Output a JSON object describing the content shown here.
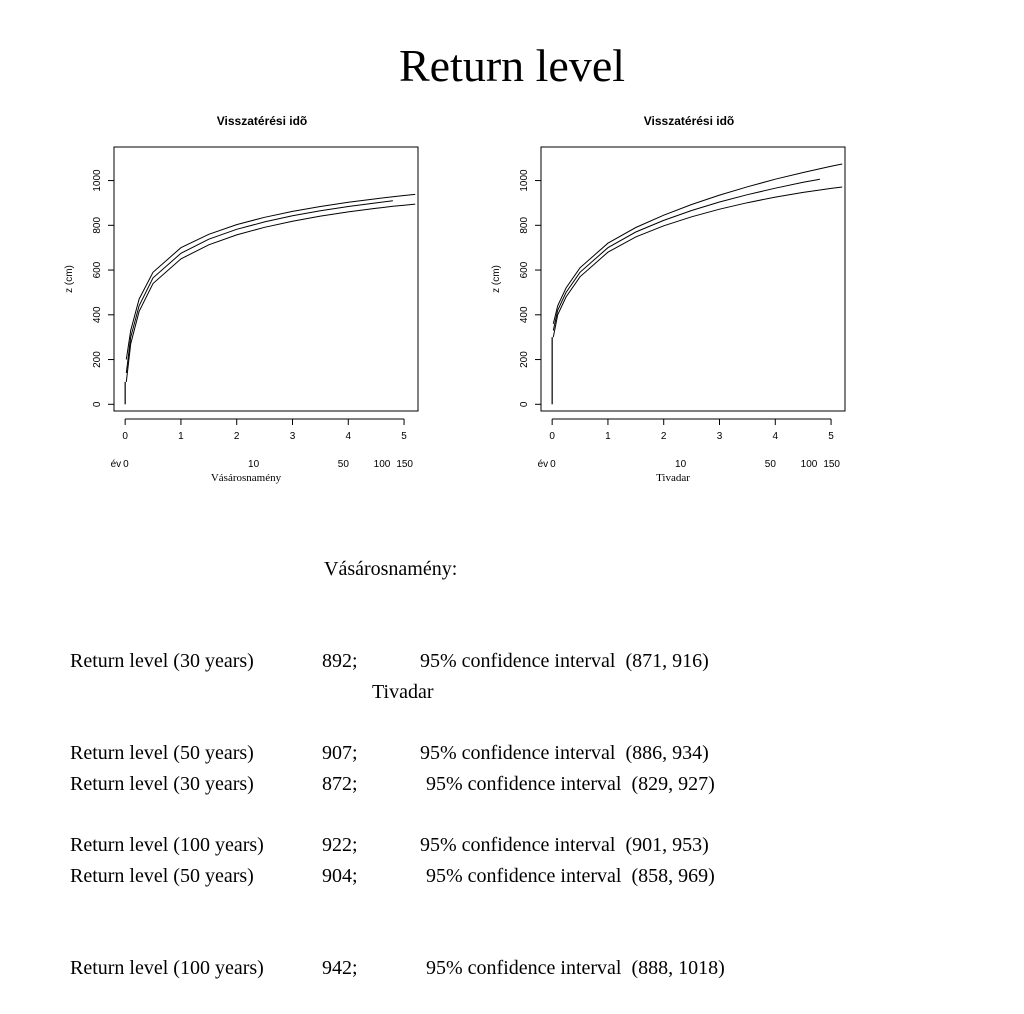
{
  "slide": {
    "title": "Return level"
  },
  "chart_data": [
    {
      "type": "line",
      "title": "Visszatérési idõ",
      "ylabel": "z (cm)",
      "xlabel": "Vásárosnamény",
      "xlim": [
        -0.2,
        5.25
      ],
      "ylim": [
        -30,
        1150
      ],
      "x_ticks": [
        0,
        1,
        2,
        3,
        4,
        5
      ],
      "y_ticks": [
        0,
        200,
        400,
        600,
        800,
        1000
      ],
      "secondary_x_prefix": "év",
      "secondary_x_ticks": [
        {
          "label": "0",
          "x": 0
        },
        {
          "label": "10",
          "x": 2.303
        },
        {
          "label": "50",
          "x": 3.912
        },
        {
          "label": "100",
          "x": 4.605
        },
        {
          "label": "150",
          "x": 5.011
        }
      ],
      "series": [
        {
          "values": [
            [
              0.02,
              200
            ],
            [
              0.1,
              330
            ],
            [
              0.25,
              470
            ],
            [
              0.5,
              590
            ],
            [
              1,
              700
            ],
            [
              1.5,
              760
            ],
            [
              2,
              803
            ],
            [
              2.5,
              836
            ],
            [
              3,
              862
            ],
            [
              3.5,
              884
            ],
            [
              4,
              903
            ],
            [
              4.5,
              919
            ],
            [
              4.8,
              928
            ],
            [
              5.0,
              933
            ],
            [
              5.2,
              938
            ]
          ]
        },
        {
          "values": [
            [
              0.02,
              140
            ],
            [
              0.1,
              300
            ],
            [
              0.25,
              440
            ],
            [
              0.5,
              565
            ],
            [
              1,
              675
            ],
            [
              1.5,
              738
            ],
            [
              2,
              782
            ],
            [
              2.5,
              815
            ],
            [
              3,
              843
            ],
            [
              3.5,
              865
            ],
            [
              4,
              884
            ],
            [
              4.5,
              900
            ],
            [
              4.8,
              910
            ]
          ]
        },
        {
          "values": [
            [
              0.02,
              100
            ],
            [
              0.1,
              270
            ],
            [
              0.25,
              415
            ],
            [
              0.5,
              540
            ],
            [
              1,
              650
            ],
            [
              1.5,
              713
            ],
            [
              2,
              757
            ],
            [
              2.5,
              791
            ],
            [
              3,
              818
            ],
            [
              3.5,
              841
            ],
            [
              4,
              860
            ],
            [
              4.5,
              876
            ],
            [
              4.8,
              885
            ],
            [
              5.0,
              890
            ],
            [
              5.2,
              895
            ]
          ]
        }
      ]
    },
    {
      "type": "line",
      "title": "Visszatérési idõ",
      "ylabel": "z (cm)",
      "xlabel": "Tivadar",
      "xlim": [
        -0.2,
        5.25
      ],
      "ylim": [
        -30,
        1150
      ],
      "x_ticks": [
        0,
        1,
        2,
        3,
        4,
        5
      ],
      "y_ticks": [
        0,
        200,
        400,
        600,
        800,
        1000
      ],
      "secondary_x_prefix": "év",
      "secondary_x_ticks": [
        {
          "label": "0",
          "x": 0
        },
        {
          "label": "10",
          "x": 2.303
        },
        {
          "label": "50",
          "x": 3.912
        },
        {
          "label": "100",
          "x": 4.605
        },
        {
          "label": "150",
          "x": 5.011
        }
      ],
      "series": [
        {
          "values": [
            [
              0.02,
              360
            ],
            [
              0.1,
              440
            ],
            [
              0.25,
              520
            ],
            [
              0.5,
              610
            ],
            [
              1,
              720
            ],
            [
              1.5,
              790
            ],
            [
              2,
              845
            ],
            [
              2.5,
              893
            ],
            [
              3,
              935
            ],
            [
              3.5,
              972
            ],
            [
              4,
              1006
            ],
            [
              4.5,
              1036
            ],
            [
              4.8,
              1053
            ],
            [
              5.0,
              1064
            ],
            [
              5.2,
              1074
            ]
          ]
        },
        {
          "values": [
            [
              0.02,
              330
            ],
            [
              0.1,
              420
            ],
            [
              0.25,
              500
            ],
            [
              0.5,
              590
            ],
            [
              1,
              700
            ],
            [
              1.5,
              770
            ],
            [
              2,
              822
            ],
            [
              2.5,
              866
            ],
            [
              3,
              904
            ],
            [
              3.5,
              937
            ],
            [
              4,
              966
            ],
            [
              4.5,
              992
            ],
            [
              4.8,
              1006
            ]
          ]
        },
        {
          "values": [
            [
              0.02,
              300
            ],
            [
              0.1,
              400
            ],
            [
              0.25,
              480
            ],
            [
              0.5,
              570
            ],
            [
              1,
              680
            ],
            [
              1.5,
              748
            ],
            [
              2,
              798
            ],
            [
              2.5,
              838
            ],
            [
              3,
              872
            ],
            [
              3.5,
              901
            ],
            [
              4,
              926
            ],
            [
              4.5,
              947
            ],
            [
              4.8,
              958
            ],
            [
              5.0,
              965
            ],
            [
              5.2,
              971
            ]
          ]
        }
      ]
    }
  ],
  "results": [
    {
      "heading": "Vásárosnamény:",
      "rows": [
        {
          "label": "Return level (30 years)",
          "value": "892;",
          "ci": "95% confidence interval  (871, 916)"
        },
        {
          "label": "Return level (50 years)",
          "value": "907;",
          "ci": "95% confidence interval  (886, 934)"
        },
        {
          "label": "Return level (100 years)",
          "value": "922;",
          "ci": "95% confidence interval  (901, 953)"
        }
      ]
    },
    {
      "heading": "Tivadar",
      "rows": [
        {
          "label": "Return level (30 years)",
          "value": "872;",
          "ci": "95% confidence interval  (829, 927)"
        },
        {
          "label": "Return level (50 years)",
          "value": "904;",
          "ci": "95% confidence interval  (858, 969)"
        },
        {
          "label": "Return level (100 years)",
          "value": "942;",
          "ci": "95% confidence interval  (888, 1018)"
        }
      ]
    }
  ]
}
